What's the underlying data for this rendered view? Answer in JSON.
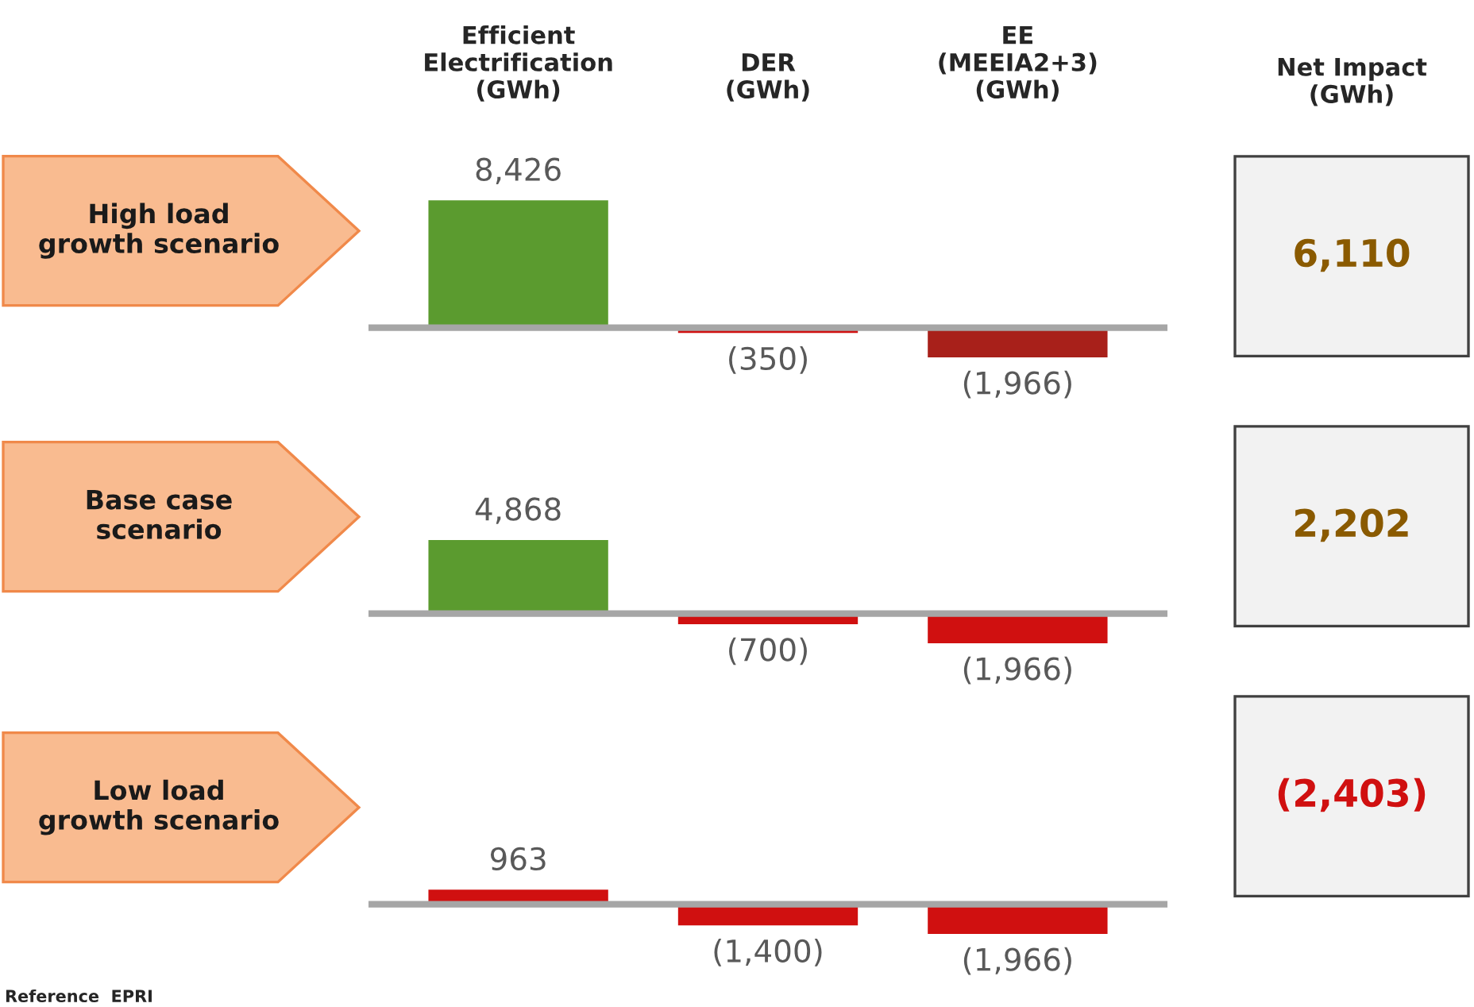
{
  "chart_data": [
    {
      "type": "bar",
      "title": "High load\ngrowth scenario",
      "categories": [
        "Efficient\nElectrification\n(GWh)",
        "DER\n(GWh)",
        "EE\n(MEEIA2+3)\n(GWh)"
      ],
      "values": [
        8426,
        -350,
        -1966
      ],
      "colors": [
        "#5b9b2f",
        "#d01010",
        "#a8201a"
      ],
      "value_labels": [
        "8,426",
        "(350)",
        "(1,966)"
      ],
      "tick_labels": "x"
    },
    {
      "type": "bar",
      "title": "Base case\nscenario",
      "categories": [
        null,
        null,
        null
      ],
      "values": [
        4868,
        -700,
        -1966
      ],
      "colors": [
        "#5b9b2f",
        "#d01010",
        "#d01010"
      ],
      "value_labels": [
        "4,868",
        "(700)",
        "(1,966)"
      ],
      "tick_labels": false
    },
    {
      "type": "bar",
      "title": "Low load\ngrowth scenario",
      "categories": [
        null,
        null,
        null
      ],
      "values": [
        963,
        -1400,
        -1966
      ],
      "colors": [
        "#d01010",
        "#d01010",
        "#d01010"
      ],
      "value_labels": [
        "963",
        "(1,400)",
        "(1,966)"
      ],
      "tick_labels": false,
      "annotations": [
        "Reference  EPRI"
      ]
    },
    {
      "type": "other",
      "title": "Net Impact\n(GWh)",
      "values": [
        6110,
        2202,
        -2403
      ],
      "value_labels": [
        "6,110",
        "2,202",
        "(2,403)"
      ],
      "colors": [
        "#8a5a00",
        "#8a5a00",
        "#d01010"
      ]
    }
  ]
}
